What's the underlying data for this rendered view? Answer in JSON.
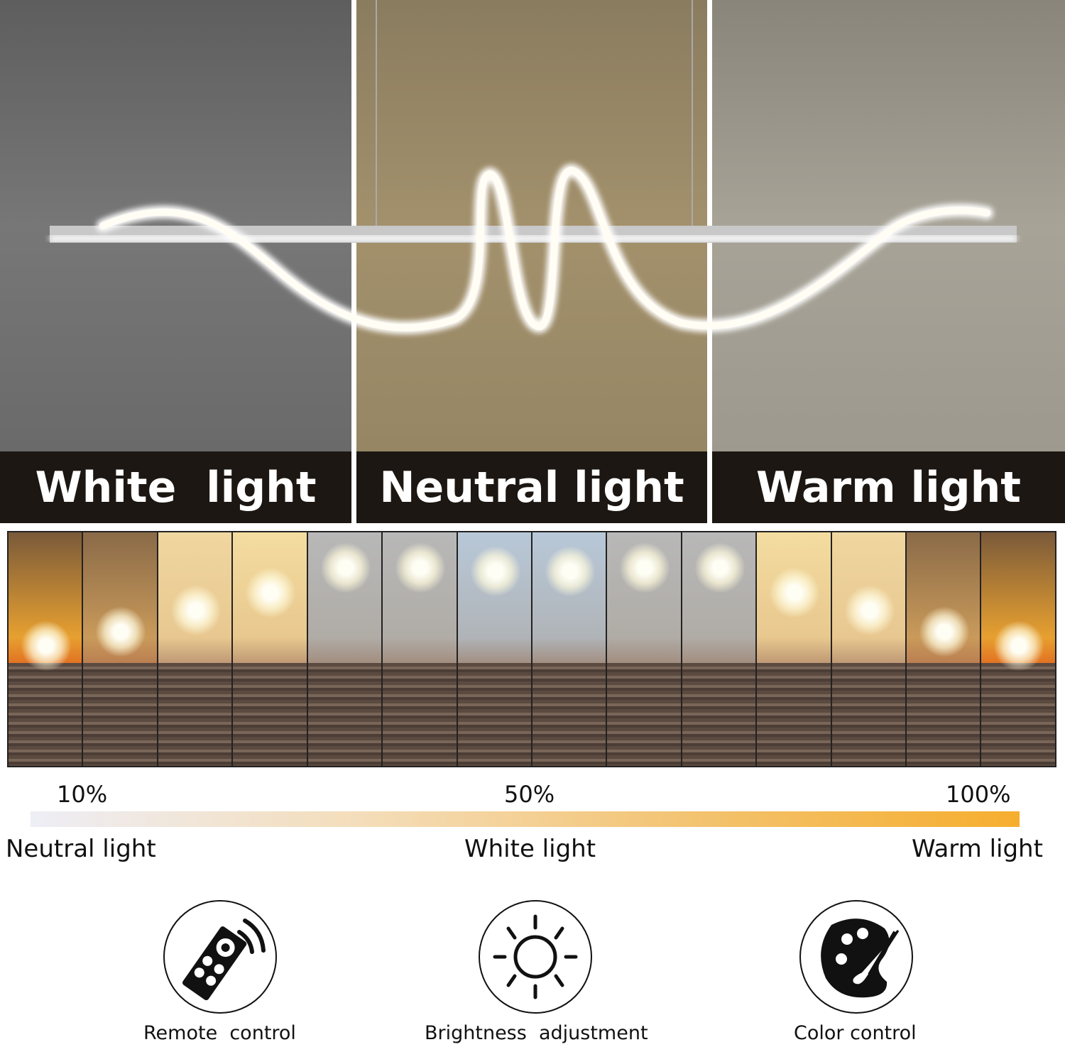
{
  "panels": [
    {
      "label": "White  light"
    },
    {
      "label": "Neutral light"
    },
    {
      "label": "Warm light"
    }
  ],
  "scale": {
    "ticks": [
      "10%",
      "50%",
      "100%"
    ],
    "captions": [
      "Neutral light",
      "White light",
      "Warm light"
    ],
    "gradient_colors": [
      "#eeeef6",
      "#f6ae2e"
    ]
  },
  "features": [
    {
      "label": "Remote  control",
      "icon": "remote-control-icon"
    },
    {
      "label": "Brightness  adjustment",
      "icon": "sun-icon"
    },
    {
      "label": "Color control",
      "icon": "palette-icon"
    }
  ]
}
